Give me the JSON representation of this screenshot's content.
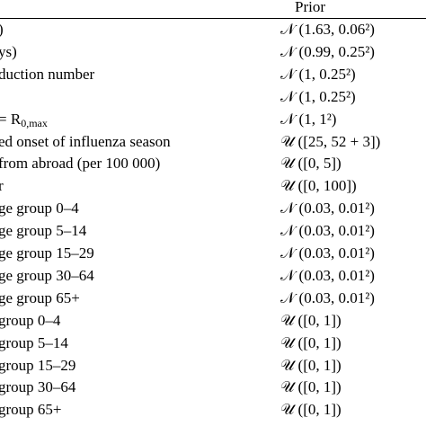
{
  "table": {
    "header": {
      "prior": "Prior"
    },
    "rows": [
      {
        "label": ")",
        "prior": "𝒩 (1.63, 0.06²)"
      },
      {
        "label": "ys)",
        "prior": "𝒩 (0.99, 0.25²)"
      },
      {
        "label": "duction number",
        "prior": "𝒩 (1, 0.25²)"
      },
      {
        "prior": "𝒩 (1, 0.25²)"
      },
      {
        "label": "= R",
        "label_sub": "0,max",
        "prior": "𝒩 (1, 1²)"
      },
      {
        "label": "ed onset of influenza season",
        "prior": "𝒰 ([25, 52 + 3])"
      },
      {
        "label": "from abroad (per 100 000)",
        "prior": "𝒰 ([0, 5])"
      },
      {
        "label": "r",
        "prior": "𝒰 ([0, 100])"
      },
      {
        "label": "ge group 0–4",
        "prior": "𝒩 (0.03, 0.01²)"
      },
      {
        "label": "ge group 5–14",
        "prior": "𝒩 (0.03, 0.01²)"
      },
      {
        "label": "ge group 15–29",
        "prior": "𝒩 (0.03, 0.01²)"
      },
      {
        "label": "ge group 30–64",
        "prior": "𝒩 (0.03, 0.01²)"
      },
      {
        "label": "ge group 65+",
        "prior": "𝒩 (0.03, 0.01²)"
      },
      {
        "label": "group 0–4",
        "prior": "𝒰 ([0, 1])"
      },
      {
        "label": "group 5–14",
        "prior": "𝒰 ([0, 1])"
      },
      {
        "label": "group 15–29",
        "prior": "𝒰 ([0, 1])"
      },
      {
        "label": "group 30–64",
        "prior": "𝒰 ([0, 1])"
      },
      {
        "label": "group 65+",
        "prior": "𝒰 ([0, 1])"
      }
    ]
  }
}
